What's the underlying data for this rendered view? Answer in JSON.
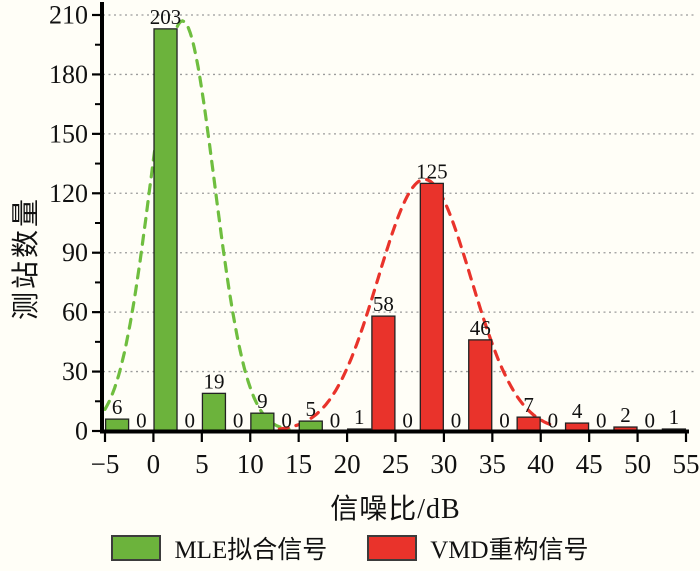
{
  "figure": {
    "background": "#fffef7"
  },
  "axes": {
    "x_label": "信噪比/dB",
    "y_label": "测站数量"
  },
  "legend": {
    "items": [
      {
        "label": "MLE拟合信号",
        "color": "#6cb33c"
      },
      {
        "label": "VMD重构信号",
        "color": "#e9332b"
      }
    ]
  },
  "chart_data": {
    "type": "bar",
    "title": "",
    "xlabel": "信噪比/dB",
    "ylabel": "测站数量",
    "xlim": [
      -5,
      55
    ],
    "ylim": [
      0,
      210
    ],
    "x_ticks": [
      -5,
      0,
      5,
      10,
      15,
      20,
      25,
      30,
      35,
      40,
      45,
      50,
      55
    ],
    "x_tick_labels": [
      "−5",
      "0",
      "5",
      "10",
      "15",
      "20",
      "25",
      "30",
      "35",
      "40",
      "45",
      "50",
      "55"
    ],
    "y_ticks": [
      0,
      30,
      60,
      90,
      120,
      150,
      180,
      210
    ],
    "y_minor_tick_step": 15,
    "grid": "horizontal dotted",
    "legend_position": "bottom",
    "bin_width": 5,
    "bin_starts": [
      -5,
      0,
      5,
      10,
      15,
      20,
      25,
      30,
      35,
      40,
      45,
      50
    ],
    "series": [
      {
        "name": "MLE拟合信号",
        "color": "#6cb33c",
        "values": [
          6,
          203,
          19,
          9,
          5,
          1,
          0,
          0,
          0,
          0,
          0,
          0
        ]
      },
      {
        "name": "VMD重构信号",
        "color": "#e9332b",
        "values": [
          0,
          0,
          0,
          0,
          0,
          58,
          125,
          46,
          7,
          4,
          2,
          1
        ]
      }
    ],
    "fit_curves": [
      {
        "series": "MLE拟合信号",
        "color": "#6fbe3f",
        "amplitude": 207,
        "mean": 3.0,
        "sigma": 3.3,
        "x_range": [
          -5,
          14
        ]
      },
      {
        "series": "VMD重构信号",
        "color": "#e9332b",
        "amplitude": 127,
        "mean": 28.0,
        "sigma": 4.8,
        "x_range": [
          13,
          41.5
        ]
      }
    ]
  }
}
